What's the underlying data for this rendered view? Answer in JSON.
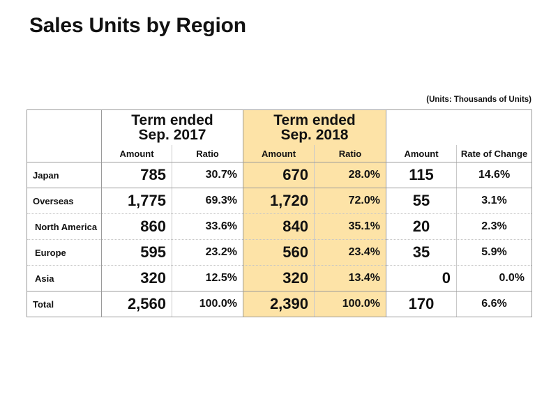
{
  "title": "Sales Units by Region",
  "units_note": "(Units: Thousands of Units)",
  "highlight_color": "#fde3a7",
  "chart_data": {
    "type": "table",
    "title": "Sales Units by Region",
    "periods": [
      {
        "line1": "Term ended",
        "line2": "Sep. 2017"
      },
      {
        "line1": "Term ended",
        "line2": "Sep. 2018"
      }
    ],
    "columns": [
      "Amount",
      "Ratio",
      "Amount",
      "Ratio",
      "Amount",
      "Rate of Change"
    ],
    "rows": [
      {
        "label": "Japan",
        "values": [
          "785",
          "30.7%",
          "670",
          "28.0%",
          "115",
          "14.6%"
        ]
      },
      {
        "label": "Overseas",
        "values": [
          "1,775",
          "69.3%",
          "1,720",
          "72.0%",
          "55",
          "3.1%"
        ]
      },
      {
        "label": "North America",
        "values": [
          "860",
          "33.6%",
          "840",
          "35.1%",
          "20",
          "2.3%"
        ]
      },
      {
        "label": "Europe",
        "values": [
          "595",
          "23.2%",
          "560",
          "23.4%",
          "35",
          "5.9%"
        ]
      },
      {
        "label": "Asia",
        "values": [
          "320",
          "12.5%",
          "320",
          "13.4%",
          "0",
          "0.0%"
        ]
      },
      {
        "label": "Total",
        "values": [
          "2,560",
          "100.0%",
          "2,390",
          "100.0%",
          "170",
          "6.6%"
        ]
      }
    ]
  }
}
